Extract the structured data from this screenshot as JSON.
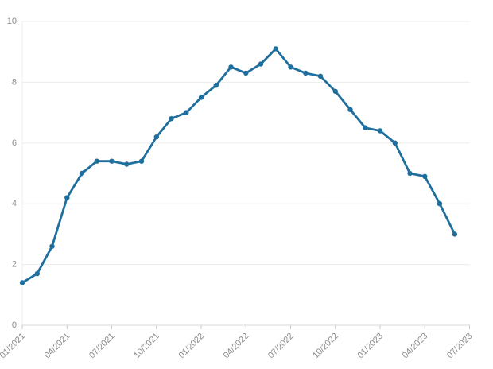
{
  "chart_data": {
    "type": "line",
    "title": "",
    "xlabel": "",
    "ylabel": "",
    "legend_position": "none",
    "grid": "horizontal",
    "x": [
      "01/2021",
      "02/2021",
      "03/2021",
      "04/2021",
      "05/2021",
      "06/2021",
      "07/2021",
      "08/2021",
      "09/2021",
      "10/2021",
      "11/2021",
      "12/2021",
      "01/2022",
      "02/2022",
      "03/2022",
      "04/2022",
      "05/2022",
      "06/2022",
      "07/2022",
      "08/2022",
      "09/2022",
      "10/2022",
      "11/2022",
      "12/2022",
      "01/2023",
      "02/2023",
      "03/2023",
      "04/2023",
      "05/2023",
      "06/2023"
    ],
    "values": [
      1.4,
      1.7,
      2.6,
      4.2,
      5.0,
      5.4,
      5.4,
      5.3,
      5.4,
      6.2,
      6.8,
      7.0,
      7.5,
      7.9,
      8.5,
      8.3,
      8.6,
      9.1,
      8.5,
      8.3,
      8.2,
      7.7,
      7.1,
      6.5,
      6.4,
      6.0,
      5.0,
      4.9,
      4.0,
      3.0
    ],
    "x_tick_labels": [
      "01/2021",
      "04/2021",
      "07/2021",
      "10/2021",
      "01/2022",
      "04/2022",
      "07/2022",
      "10/2022",
      "01/2023",
      "04/2023",
      "07/2023"
    ],
    "x_tick_step_months": 3,
    "y_ticks": [
      "0",
      "2",
      "4",
      "6",
      "8",
      "10"
    ],
    "ylim": [
      0,
      10
    ],
    "colors": {
      "line": "#1f6f9e",
      "marker": "#1f6f9e",
      "gridline": "#ececec",
      "baseline": "#d9d9d9",
      "tick_mark": "#c9c9c9",
      "axis_text": "#8c8c8c",
      "background": "#ffffff"
    }
  }
}
